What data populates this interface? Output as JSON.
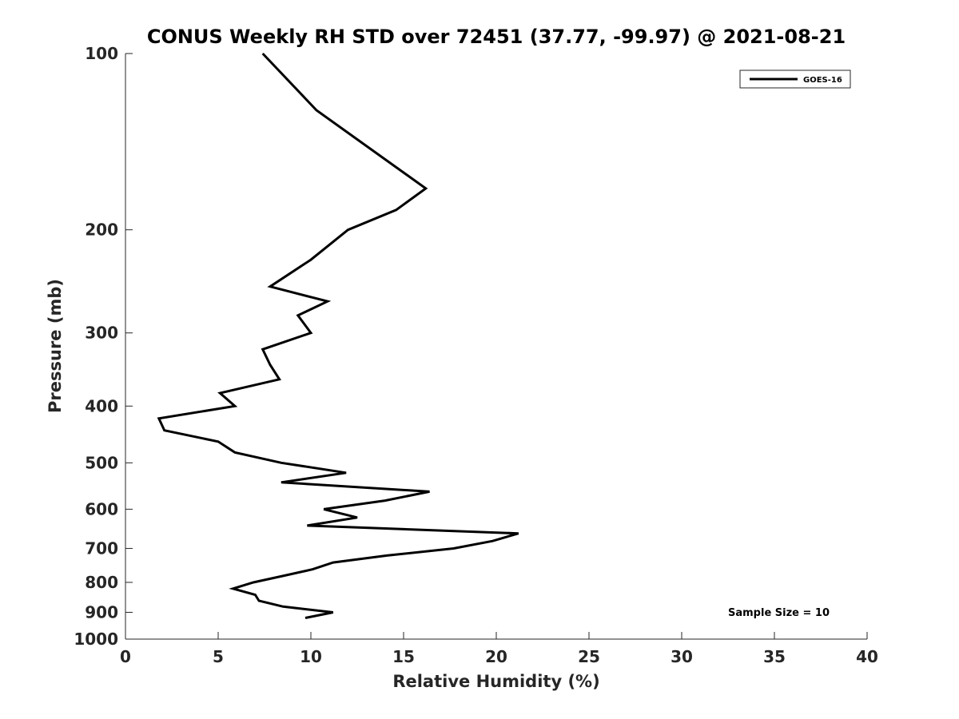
{
  "chart_data": {
    "type": "line",
    "title": "CONUS Weekly RH STD over 72451 (37.77, -99.97) @ 2021-08-21",
    "xlabel": "Relative Humidity (%)",
    "ylabel": "Pressure (mb)",
    "xlim": [
      0,
      40
    ],
    "ylim": [
      100,
      1000
    ],
    "yscale": "log",
    "y_reversed": true,
    "grid": false,
    "xticks": [
      0,
      5,
      10,
      15,
      20,
      25,
      30,
      35,
      40
    ],
    "xtick_labels": [
      "0",
      "5",
      "10",
      "15",
      "20",
      "25",
      "30",
      "35",
      "40"
    ],
    "yticks": [
      100,
      200,
      300,
      400,
      500,
      600,
      700,
      800,
      900,
      1000
    ],
    "ytick_labels": [
      "100",
      "200",
      "300",
      "400",
      "500",
      "600",
      "700",
      "800",
      "900",
      "1000"
    ],
    "legend_position": "top-right",
    "annotation": "Sample Size = 10",
    "series": [
      {
        "name": "GOES-16",
        "color": "#000000",
        "points": [
          [
            7.4,
            100
          ],
          [
            10.3,
            125
          ],
          [
            13.8,
            150
          ],
          [
            16.2,
            170
          ],
          [
            14.6,
            185
          ],
          [
            12.0,
            200
          ],
          [
            10.0,
            225
          ],
          [
            7.8,
            250
          ],
          [
            10.9,
            265
          ],
          [
            9.3,
            280
          ],
          [
            10.0,
            300
          ],
          [
            7.4,
            320
          ],
          [
            7.8,
            340
          ],
          [
            8.3,
            360
          ],
          [
            5.1,
            380
          ],
          [
            5.9,
            400
          ],
          [
            1.8,
            420
          ],
          [
            2.1,
            440
          ],
          [
            5.0,
            460
          ],
          [
            5.9,
            480
          ],
          [
            8.4,
            500
          ],
          [
            11.9,
            520
          ],
          [
            8.4,
            540
          ],
          [
            16.4,
            560
          ],
          [
            14.0,
            580
          ],
          [
            10.7,
            600
          ],
          [
            12.5,
            620
          ],
          [
            9.8,
            640
          ],
          [
            21.2,
            660
          ],
          [
            19.8,
            680
          ],
          [
            17.7,
            700
          ],
          [
            14.1,
            720
          ],
          [
            11.2,
            740
          ],
          [
            10.1,
            760
          ],
          [
            8.5,
            780
          ],
          [
            6.9,
            800
          ],
          [
            5.8,
            820
          ],
          [
            7.0,
            840
          ],
          [
            7.2,
            860
          ],
          [
            8.5,
            880
          ],
          [
            11.2,
            900
          ],
          [
            9.7,
            920
          ]
        ]
      }
    ]
  }
}
